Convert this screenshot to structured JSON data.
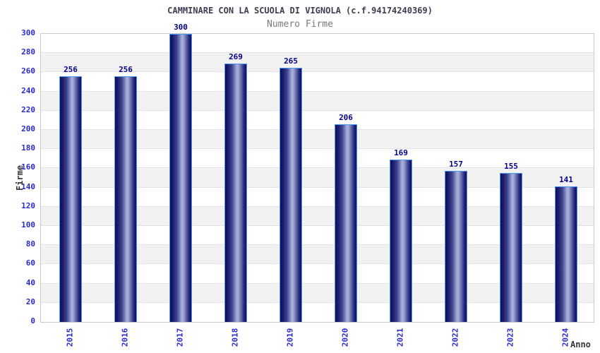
{
  "chart_data": {
    "type": "bar",
    "title": "CAMMINARE CON LA SCUOLA DI VIGNOLA (c.f.94174240369)",
    "subtitle": "Numero Firme",
    "categories": [
      "2015",
      "2016",
      "2017",
      "2018",
      "2019",
      "2020",
      "2021",
      "2022",
      "2023",
      "2024"
    ],
    "values": [
      256,
      256,
      300,
      269,
      265,
      206,
      169,
      157,
      155,
      141
    ],
    "xlabel": "Anno",
    "ylabel": "Firme",
    "ylim": [
      0,
      300
    ],
    "ytick_step": 20,
    "yticks": [
      0,
      20,
      40,
      60,
      80,
      100,
      120,
      140,
      160,
      180,
      200,
      220,
      240,
      260,
      280,
      300
    ],
    "grid": "horizontal-bands-alternating",
    "legend": "none"
  },
  "colors": {
    "axis_label": "#2a2acc",
    "value_label": "#00008b",
    "title": "#3d3d52",
    "subtitle": "#7a7a7a",
    "band_gray": "#f2f2f2",
    "band_white": "#ffffff",
    "grid_line": "#e3e3e3",
    "plot_border": "#c9c9c9",
    "bar_border": "#4a9af5",
    "bar_dark": "#0e0e52",
    "bar_light": "#aab2da",
    "text_dark": "#333333"
  }
}
